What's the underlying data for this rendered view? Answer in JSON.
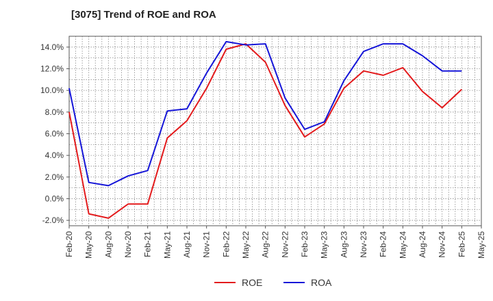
{
  "chart_data": {
    "type": "line",
    "title": "[3075]  Trend of ROE and ROA",
    "xlabel": "",
    "ylabel": "",
    "categories": [
      "Feb-20",
      "May-20",
      "Aug-20",
      "Nov-20",
      "Feb-21",
      "May-21",
      "Aug-21",
      "Nov-21",
      "Feb-22",
      "May-22",
      "Aug-22",
      "Nov-22",
      "Feb-23",
      "May-23",
      "Aug-23",
      "Nov-23",
      "Feb-24",
      "May-24",
      "Aug-24",
      "Nov-24",
      "Feb-25",
      "May-25"
    ],
    "yticks": [
      "-2.0%",
      "0.0%",
      "2.0%",
      "4.0%",
      "6.0%",
      "8.0%",
      "10.0%",
      "12.0%",
      "14.0%"
    ],
    "ylim": [
      -2.5,
      15.0
    ],
    "grid": true,
    "legend_position": "bottom",
    "series": [
      {
        "name": "ROE",
        "color": "#e31a1c",
        "values": [
          8.0,
          -1.4,
          -1.8,
          -0.5,
          -0.5,
          5.6,
          7.2,
          10.2,
          13.8,
          14.3,
          12.6,
          8.6,
          5.7,
          6.9,
          10.2,
          11.8,
          11.4,
          12.1,
          9.9,
          8.4,
          10.1,
          null
        ]
      },
      {
        "name": "ROA",
        "color": "#1515d8",
        "values": [
          10.2,
          1.5,
          1.2,
          2.1,
          2.6,
          8.1,
          8.3,
          11.6,
          14.5,
          14.2,
          14.3,
          9.3,
          6.4,
          7.1,
          10.9,
          13.6,
          14.3,
          14.3,
          13.2,
          11.8,
          11.8,
          null
        ]
      }
    ]
  }
}
